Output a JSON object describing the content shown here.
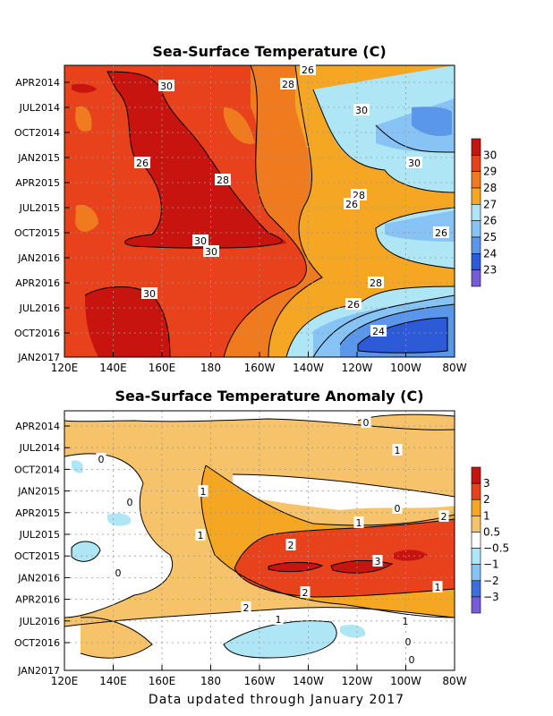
{
  "footer": "Data updated through January 2017",
  "chart_data": [
    {
      "type": "heatmap",
      "title": "Sea-Surface Temperature (C)",
      "x_ticks": [
        "120E",
        "140E",
        "160E",
        "180",
        "160W",
        "140W",
        "120W",
        "100W",
        "80W"
      ],
      "y_ticks": [
        "APR2014",
        "JUL2014",
        "OCT2014",
        "JAN2015",
        "APR2015",
        "JUL2015",
        "OCT2015",
        "JAN2016",
        "APR2016",
        "JUL2016",
        "OCT2016",
        "JAN2017"
      ],
      "colorbar": {
        "labels": [
          "30",
          "29",
          "28",
          "27",
          "26",
          "25",
          "24",
          "23"
        ],
        "colors": [
          "#c8140f",
          "#e8421c",
          "#f07a1e",
          "#f5a623",
          "#aee6f5",
          "#87c3f5",
          "#5a96ea",
          "#2d5ad6",
          "#7a5bd6"
        ]
      },
      "contour_labels": [
        "26",
        "28",
        "30",
        "30",
        "26",
        "30",
        "28",
        "28",
        "26",
        "26",
        "30",
        "30",
        "28",
        "26",
        "30",
        "24"
      ]
    },
    {
      "type": "heatmap",
      "title": "Sea-Surface Temperature Anomaly (C)",
      "x_ticks": [
        "120E",
        "140E",
        "160E",
        "180",
        "160W",
        "140W",
        "120W",
        "100W",
        "80W"
      ],
      "y_ticks": [
        "APR2014",
        "JUL2014",
        "OCT2014",
        "JAN2015",
        "APR2015",
        "JUL2015",
        "OCT2015",
        "JAN2016",
        "APR2016",
        "JUL2016",
        "OCT2016",
        "JAN2017"
      ],
      "colorbar": {
        "labels": [
          "3",
          "2",
          "1",
          "0.5",
          "−0.5",
          "−1",
          "−2",
          "−3"
        ],
        "colors": [
          "#c8140f",
          "#e8421c",
          "#f5a623",
          "#f7c36a",
          "#ffffff",
          "#aee6f5",
          "#87c3f5",
          "#3c6ee0",
          "#7a5bd6"
        ]
      },
      "contour_labels": [
        "0",
        "0",
        "1",
        "1",
        "0",
        "0",
        "1",
        "2",
        "1",
        "2",
        "3",
        "2",
        "1",
        "2",
        "1",
        "1",
        "0",
        "0",
        "0"
      ]
    }
  ]
}
